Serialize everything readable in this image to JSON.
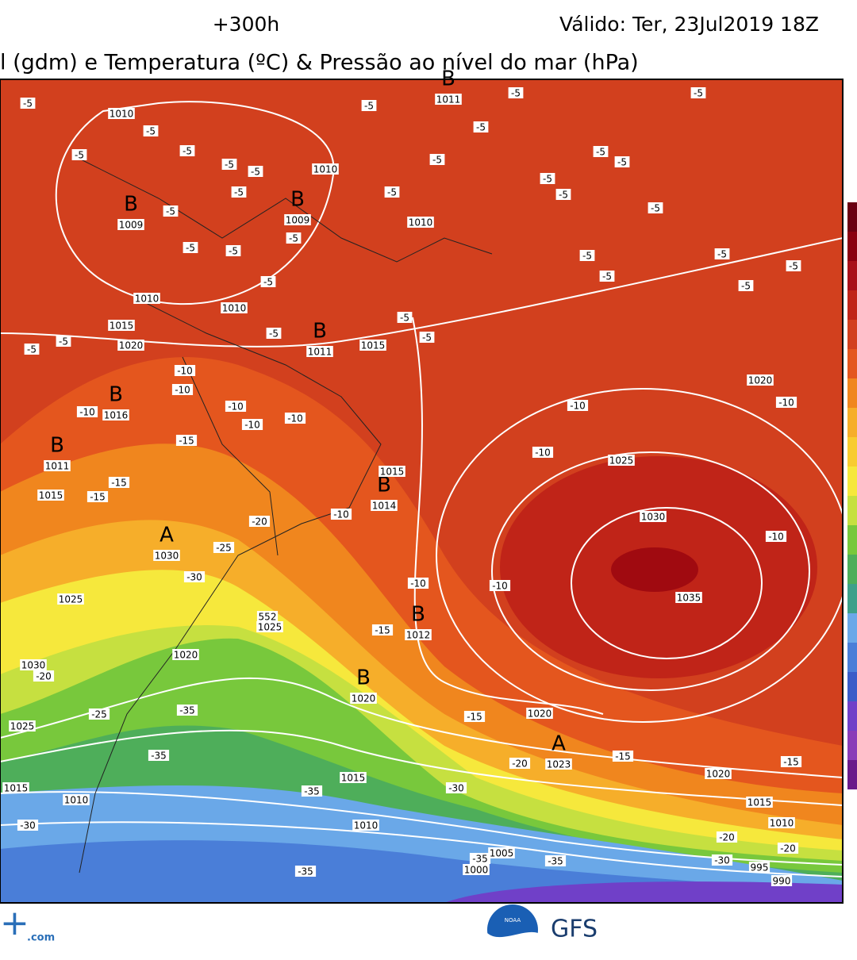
{
  "header": {
    "lead_time": "+300h",
    "valid": "Válido: Ter, 23Jul2019 18Z",
    "title": "l (gdm) e Temperatura (ºC) & Pressão ao nível do mar (hPa)"
  },
  "pressure_centers": [
    {
      "letter": "B",
      "value": "1011"
    },
    {
      "letter": "B",
      "value": "1009"
    },
    {
      "letter": "B",
      "value": "1009"
    },
    {
      "letter": "B",
      "value": "1011"
    },
    {
      "letter": "B",
      "value": "1016"
    },
    {
      "letter": "B",
      "value": "1011"
    },
    {
      "letter": "B",
      "value": "1014"
    },
    {
      "letter": "A",
      "value": "1030"
    },
    {
      "letter": "B",
      "value": "1012"
    },
    {
      "letter": "B",
      "value": "1020"
    },
    {
      "letter": "A",
      "value": "1023"
    }
  ],
  "isobar_labels": [
    "1010",
    "1010",
    "1010",
    "1010",
    "1010",
    "1015",
    "1020",
    "1015",
    "1020",
    "1025",
    "1015",
    "1015",
    "1030",
    "1035",
    "1025",
    "1025",
    "1020",
    "1030",
    "1025",
    "1020",
    "1020",
    "1015",
    "1015",
    "1015",
    "1010",
    "1010",
    "1010",
    "1005",
    "1000",
    "995",
    "990"
  ],
  "isotherm_labels": [
    "-5",
    "-5",
    "-5",
    "-5",
    "-5",
    "-5",
    "-5",
    "-5",
    "-5",
    "-5",
    "-5",
    "-5",
    "-5",
    "-5",
    "-5",
    "-5",
    "-5",
    "-5",
    "-5",
    "-5",
    "-5",
    "-5",
    "-5",
    "-5",
    "-5",
    "-5",
    "-5",
    "-5",
    "-5",
    "-5",
    "-5",
    "-5",
    "-5",
    "-10",
    "-10",
    "-10",
    "-10",
    "-10",
    "-10",
    "-10",
    "-10",
    "-10",
    "-10",
    "-10",
    "-10",
    "-10",
    "-15",
    "-15",
    "-15",
    "-15",
    "-15",
    "-15",
    "-15",
    "-20",
    "-20",
    "-20",
    "-20",
    "-20",
    "-25",
    "-25",
    "-30",
    "-30",
    "-30",
    "-30",
    "-35",
    "-35",
    "-35",
    "-35",
    "-35",
    "-35"
  ],
  "thickness_label": "552",
  "footer": {
    "site": ".com",
    "agency": "NOAA",
    "model": "GFS"
  }
}
